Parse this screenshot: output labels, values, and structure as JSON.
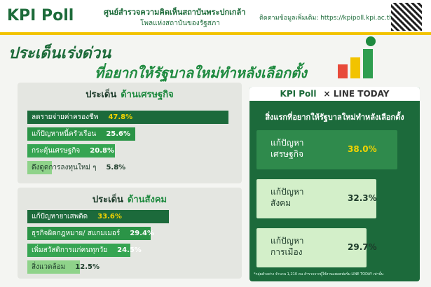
{
  "header": {
    "logo": "KPI Poll",
    "org": "ศูนย์สำรวจความคิดเห็นสถาบันพระปกเกล้า",
    "org_sub": "โพลแห่งสถาบันของรัฐสภา",
    "link": "ติดตามข้อมูลเพิ่มเติม: https://kpipoll.kpi.ac.th/"
  },
  "title": [
    "ประเด็นเร่งด่วน",
    "ที่อยากให้รัฐบาลใหม่ทำหลังเลือกตั้ง"
  ],
  "chart_data": [
    {
      "type": "bar",
      "title": [
        "ประเด็น",
        "ด้านเศรษฐกิจ"
      ],
      "categories": [
        "ลดรายจ่ายค่าครองชีพ",
        "แก้ปัญหาหนี้ครัวเรือน",
        "กระตุ้นเศรษฐกิจ",
        "ดึงดูดการลงทุนใหม่ ๆ"
      ],
      "values": [
        47.8,
        25.6,
        20.8,
        5.8
      ],
      "value_labels": [
        "47.8%",
        "25.6%",
        "20.8%",
        "5.8%"
      ],
      "colors": [
        "#1c6a3b",
        "#2b9447",
        "#36a552",
        "#8fd38a"
      ]
    },
    {
      "type": "bar",
      "title": [
        "ประเด็น",
        "ด้านสังคม"
      ],
      "categories": [
        "แก้ปัญหายาเสพติด",
        "ธุรกิจผิดกฎหมาย/ สแกมเมอร์",
        "เพิ่มสวัสดิการแก่คนทุกวัย",
        "สิ่งแวดล้อม"
      ],
      "values": [
        33.6,
        29.4,
        24.5,
        12.5
      ],
      "value_labels": [
        "33.6%",
        "29.4%",
        "24.5%",
        "12.5%"
      ],
      "colors": [
        "#1c6a3b",
        "#2b9447",
        "#36a552",
        "#8fd38a"
      ]
    },
    {
      "type": "bar",
      "logos": [
        "KPI Poll",
        "× LINE TODAY"
      ],
      "title": "สิ่งแรกที่อยากให้รัฐบาลใหม่ทำหลังเลือกตั้ง",
      "categories": [
        "แก้ปัญหา เศรษฐกิจ",
        "แก้ปัญหา สังคม",
        "แก้ปัญหา การเมือง"
      ],
      "values": [
        38.0,
        32.3,
        29.7
      ],
      "value_labels": [
        "38.0%",
        "32.3%",
        "29.7%"
      ],
      "colors": [
        "#2f8a4c",
        "#d3efc9",
        "#d3efc9"
      ],
      "note": "*กลุ่มตัวอย่าง จำนวน 1,210 คน สำรวจจากผู้ใช้งานแพลตฟอร์ม LINE TODAY เท่านั้น"
    }
  ]
}
